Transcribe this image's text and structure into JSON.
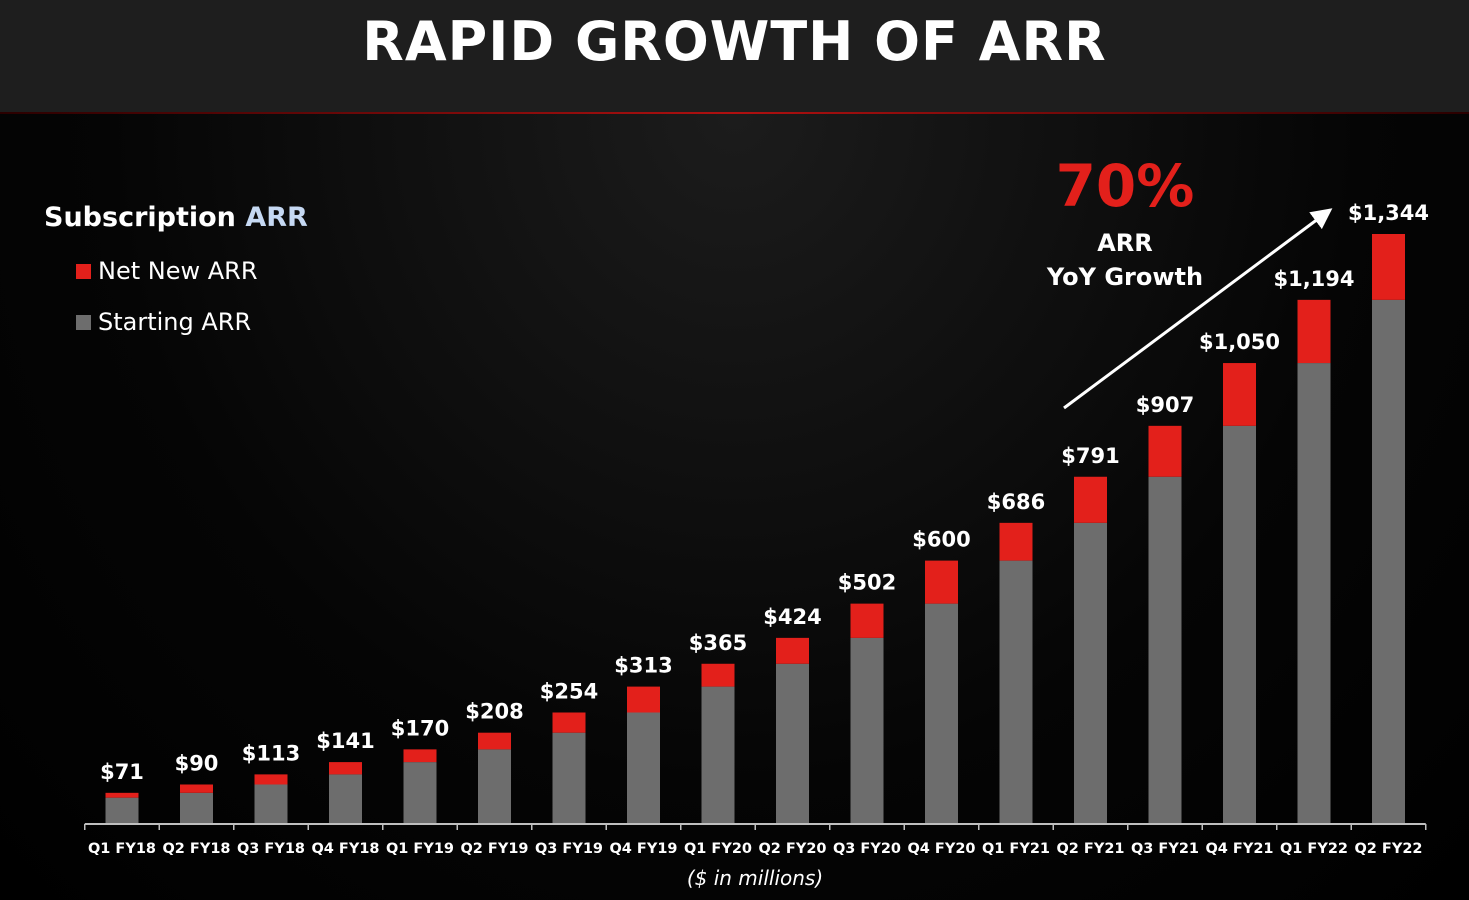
{
  "title": "RAPID GROWTH OF ARR",
  "legend": {
    "title_main": "Subscription ",
    "title_accent": "ARR",
    "accent_color": "#c6d9f3",
    "items": [
      {
        "label": "Net New ARR",
        "color": "#e3201b"
      },
      {
        "label": "Starting ARR",
        "color": "#6d6d6d"
      }
    ]
  },
  "callout": {
    "value": "70%",
    "line1": "ARR",
    "line2": "YoY Growth"
  },
  "units_note": "($ in millions)",
  "chart_data": {
    "type": "bar",
    "stacked": true,
    "categories": [
      "Q1 FY18",
      "Q2 FY18",
      "Q3 FY18",
      "Q4 FY18",
      "Q1 FY19",
      "Q2 FY19",
      "Q3 FY19",
      "Q4 FY19",
      "Q1 FY20",
      "Q2 FY20",
      "Q3 FY20",
      "Q4 FY20",
      "Q1 FY21",
      "Q2 FY21",
      "Q3 FY21",
      "Q4 FY21",
      "Q1 FY22",
      "Q2 FY22"
    ],
    "series": [
      {
        "name": "Starting ARR",
        "color": "#6d6d6d",
        "values": [
          60,
          71,
          90,
          113,
          141,
          170,
          208,
          254,
          313,
          365,
          424,
          502,
          600,
          686,
          791,
          907,
          1050,
          1194
        ]
      },
      {
        "name": "Net New ARR",
        "color": "#e3201b",
        "values": [
          11,
          19,
          23,
          28,
          29,
          38,
          46,
          59,
          52,
          59,
          78,
          98,
          86,
          105,
          116,
          143,
          144,
          150
        ]
      }
    ],
    "totals": [
      71,
      90,
      113,
      141,
      170,
      208,
      254,
      313,
      365,
      424,
      502,
      600,
      686,
      791,
      907,
      1050,
      1194,
      1344
    ],
    "total_labels": [
      "$71",
      "$90",
      "$113",
      "$141",
      "$170",
      "$208",
      "$254",
      "$313",
      "$365",
      "$424",
      "$502",
      "$600",
      "$686",
      "$791",
      "$907",
      "$1,050",
      "$1,194",
      "$1,344"
    ],
    "ylim": [
      0,
      1344
    ],
    "grid": false,
    "legend_position": "top-left",
    "annotation": "70% ARR YoY Growth"
  }
}
